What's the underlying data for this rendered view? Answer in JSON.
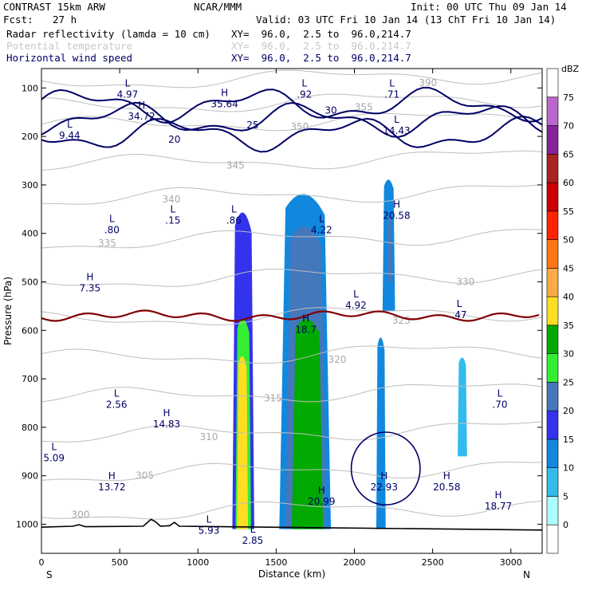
{
  "header": {
    "model": "CONTRAST 15km ARW",
    "org": "NCAR/MMM",
    "init": "Init: 00 UTC Thu 09 Jan 14",
    "fcst_label": "Fcst:",
    "fcst_value": "27 h",
    "valid": "Valid: 03 UTC Fri 10 Jan 14 (13 ChT Fri 10 Jan 14)",
    "fields": [
      {
        "name": "Radar reflectivity (lamda = 10 cm)",
        "xy": "XY=  96.0,  2.5 to  96.0,214.7",
        "color": "#000000"
      },
      {
        "name": "Potential temperature",
        "xy": "XY=  96.0,  2.5 to  96.0,214.7",
        "color": "#c8c8c8"
      },
      {
        "name": "Horizontal wind speed",
        "xy": "XY=  96.0,  2.5 to  96.0,214.7",
        "color": "#000066"
      }
    ]
  },
  "chart_data": {
    "type": "heatmap",
    "xlabel": "Distance (km)",
    "ylabel": "Pressure (hPa)",
    "xlim": [
      0,
      3200
    ],
    "ylim": [
      60,
      1060
    ],
    "y_inverted": true,
    "xticks": [
      0,
      500,
      1000,
      1500,
      2000,
      2500,
      3000
    ],
    "yticks": [
      100,
      200,
      300,
      400,
      500,
      600,
      700,
      800,
      900,
      1000
    ],
    "x_end_labels": {
      "left": "S",
      "right": "N"
    },
    "colorbar": {
      "unit": "dBZ",
      "levels": [
        0,
        5,
        10,
        15,
        20,
        25,
        30,
        35,
        40,
        45,
        50,
        55,
        60,
        65,
        70,
        75
      ],
      "colors": [
        "#ffffff",
        "#aaffff",
        "#33bbee",
        "#1188dd",
        "#3333ee",
        "#4477bb",
        "#33ee33",
        "#00aa00",
        "#ffdd22",
        "#ffaa44",
        "#ff7711",
        "#ff2200",
        "#cc0000",
        "#aa2222",
        "#882299",
        "#bb66cc",
        "#ffffff"
      ]
    },
    "reflectivity_cells": [
      {
        "x0": 1220,
        "x1": 1360,
        "p_top": 330,
        "p_bot": 1010,
        "dbz": 15
      },
      {
        "x0": 1240,
        "x1": 1340,
        "p_top": 560,
        "p_bot": 1010,
        "dbz": 25
      },
      {
        "x0": 1250,
        "x1": 1320,
        "p_top": 640,
        "p_bot": 1010,
        "dbz": 35
      },
      {
        "x0": 1520,
        "x1": 1850,
        "p_top": 290,
        "p_bot": 1010,
        "dbz": 10
      },
      {
        "x0": 1560,
        "x1": 1820,
        "p_top": 360,
        "p_bot": 1010,
        "dbz": 20
      },
      {
        "x0": 1600,
        "x1": 1800,
        "p_top": 560,
        "p_bot": 1010,
        "dbz": 30
      },
      {
        "x0": 2180,
        "x1": 2260,
        "p_top": 280,
        "p_bot": 560,
        "dbz": 10
      },
      {
        "x0": 2210,
        "x1": 2240,
        "p_top": 360,
        "p_bot": 500,
        "dbz": 20
      },
      {
        "x0": 2140,
        "x1": 2200,
        "p_top": 600,
        "p_bot": 1010,
        "dbz": 10
      },
      {
        "x0": 2660,
        "x1": 2720,
        "p_top": 650,
        "p_bot": 860,
        "dbz": 5
      }
    ],
    "theta_contours_K": [
      300,
      305,
      310,
      315,
      320,
      325,
      330,
      335,
      340,
      345,
      350,
      355,
      390
    ],
    "wind_contours_ms": [
      20,
      25,
      30
    ],
    "zero_isotherm_p": 570,
    "extrema_labels": [
      {
        "type": "L",
        "value": "4.97",
        "x": 550,
        "p": 110
      },
      {
        "type": "H",
        "value": "35.64",
        "x": 1170,
        "p": 130
      },
      {
        "type": "H",
        "value": "34.72",
        "x": 640,
        "p": 155
      },
      {
        "type": "L",
        "value": ".92",
        "x": 1680,
        "p": 110
      },
      {
        "type": "L",
        "value": ".71",
        "x": 2240,
        "p": 110
      },
      {
        "type": "L",
        "value": "9.44",
        "x": 180,
        "p": 195
      },
      {
        "type": "L",
        "value": "14.43",
        "x": 2270,
        "p": 185
      },
      {
        "type": "L",
        "value": ".80",
        "x": 450,
        "p": 390
      },
      {
        "type": "L",
        "value": ".15",
        "x": 840,
        "p": 370
      },
      {
        "type": "L",
        "value": ".86",
        "x": 1230,
        "p": 370
      },
      {
        "type": "L",
        "value": "4.22",
        "x": 1790,
        "p": 390
      },
      {
        "type": "H",
        "value": "20.58",
        "x": 2270,
        "p": 360
      },
      {
        "type": "H",
        "value": "7.35",
        "x": 310,
        "p": 510
      },
      {
        "type": "L",
        "value": "4.92",
        "x": 2010,
        "p": 545
      },
      {
        "type": "L",
        "value": ".47",
        "x": 2670,
        "p": 565
      },
      {
        "type": "H",
        "value": "18.7",
        "x": 1690,
        "p": 595
      },
      {
        "type": "L",
        "value": "2.56",
        "x": 480,
        "p": 750
      },
      {
        "type": "H",
        "value": "14.83",
        "x": 800,
        "p": 790
      },
      {
        "type": "L",
        "value": ".70",
        "x": 2930,
        "p": 750
      },
      {
        "type": "L",
        "value": "5.09",
        "x": 80,
        "p": 860
      },
      {
        "type": "H",
        "value": "13.72",
        "x": 450,
        "p": 920
      },
      {
        "type": "H",
        "value": "22.93",
        "x": 2190,
        "p": 920
      },
      {
        "type": "H",
        "value": "20.58",
        "x": 2590,
        "p": 920
      },
      {
        "type": "H",
        "value": "20.99",
        "x": 1790,
        "p": 950
      },
      {
        "type": "H",
        "value": "18.77",
        "x": 2920,
        "p": 960
      },
      {
        "type": "L",
        "value": "5.93",
        "x": 1070,
        "p": 1010
      },
      {
        "type": "L",
        "value": "2.85",
        "x": 1350,
        "p": 1030
      }
    ]
  }
}
